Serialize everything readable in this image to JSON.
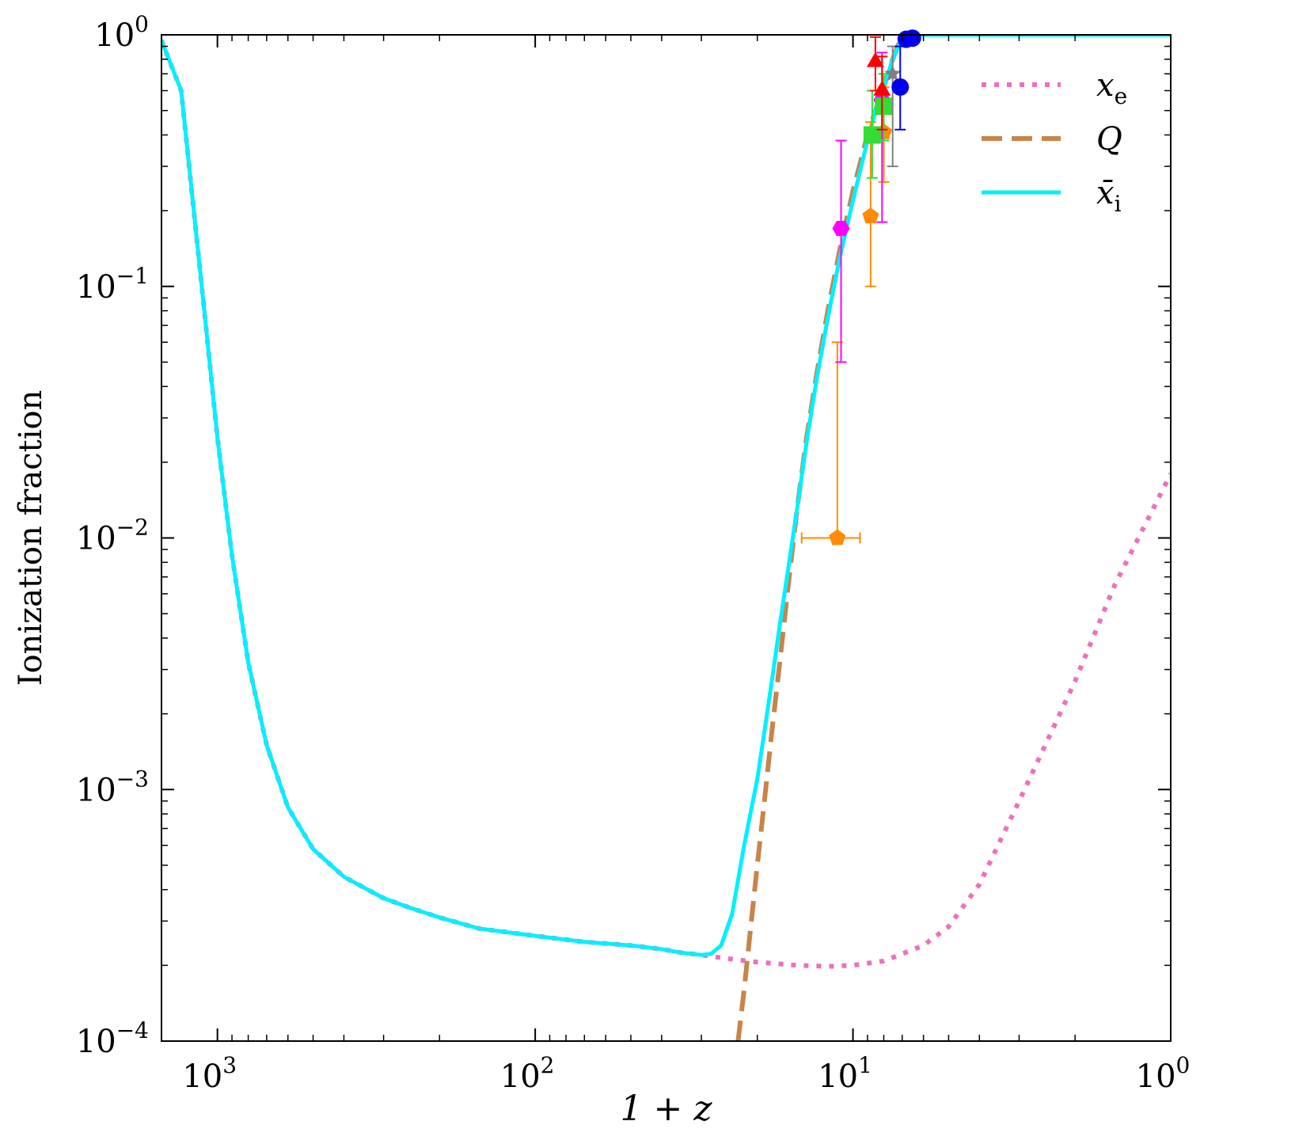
{
  "chart_data": {
    "type": "line",
    "title": "",
    "xlabel": "1 + z",
    "ylabel": "Ionization fraction",
    "x_scale": "log",
    "y_scale": "log",
    "x_reversed": true,
    "xlim": [
      1500,
      1
    ],
    "ylim": [
      0.0001,
      1
    ],
    "x_ticks": [
      {
        "value": 1000,
        "base": "10",
        "exp": "3"
      },
      {
        "value": 100,
        "base": "10",
        "exp": "2"
      },
      {
        "value": 10,
        "base": "10",
        "exp": "1"
      },
      {
        "value": 1,
        "base": "10",
        "exp": "0"
      }
    ],
    "y_ticks": [
      {
        "value": 1,
        "base": "10",
        "exp": "0"
      },
      {
        "value": 0.1,
        "base": "10",
        "exp": "−1"
      },
      {
        "value": 0.01,
        "base": "10",
        "exp": "−2"
      },
      {
        "value": 0.001,
        "base": "10",
        "exp": "−3"
      },
      {
        "value": 0.0001,
        "base": "10",
        "exp": "−4"
      }
    ],
    "grid": false,
    "legend_position": "top-right",
    "series": [
      {
        "name": "x",
        "subscript": "e",
        "color": "#ee6fbd",
        "style": "dotted",
        "x": [
          1500,
          1300,
          1100,
          1000,
          900,
          800,
          700,
          600,
          500,
          400,
          300,
          250,
          200,
          150,
          100,
          70,
          50,
          40,
          35,
          30,
          25,
          20,
          15,
          12,
          10,
          8,
          6,
          5,
          4,
          3,
          2,
          1.5,
          1
        ],
        "y": [
          0.95,
          0.6,
          0.08,
          0.025,
          0.0085,
          0.0032,
          0.0015,
          0.00085,
          0.00058,
          0.00045,
          0.00037,
          0.00034,
          0.00031,
          0.00028,
          0.000262,
          0.000248,
          0.00024,
          0.000232,
          0.000225,
          0.00022,
          0.000213,
          0.000206,
          0.0002,
          0.000198,
          0.0002,
          0.000208,
          0.00024,
          0.000285,
          0.00042,
          0.0009,
          0.0027,
          0.0065,
          0.018
        ]
      },
      {
        "name": "Q",
        "subscript": "",
        "color": "#c8844a",
        "style": "dashed",
        "x": [
          23,
          22,
          21,
          20,
          19,
          18,
          17,
          16,
          15,
          14,
          13,
          12,
          11,
          10,
          9,
          8.5,
          8,
          7.5,
          7
        ],
        "y": [
          0.0001,
          0.00016,
          0.00028,
          0.0005,
          0.0009,
          0.0017,
          0.0032,
          0.0064,
          0.013,
          0.025,
          0.045,
          0.08,
          0.14,
          0.24,
          0.4,
          0.5,
          0.62,
          0.8,
          1
        ]
      },
      {
        "name": "x̄",
        "subscript": "i",
        "color": "#00f0ff",
        "style": "solid",
        "x": [
          1500,
          1300,
          1100,
          1000,
          900,
          800,
          700,
          600,
          500,
          400,
          300,
          250,
          200,
          150,
          100,
          70,
          50,
          40,
          35,
          30,
          28,
          26,
          24,
          22,
          20,
          19,
          18,
          17,
          16,
          15,
          14,
          13,
          12,
          11,
          10,
          9,
          8.5,
          8,
          7.5,
          7,
          6.5,
          6,
          5,
          4,
          3,
          2,
          1
        ],
        "y": [
          0.95,
          0.6,
          0.08,
          0.025,
          0.0085,
          0.0032,
          0.0015,
          0.00085,
          0.00058,
          0.00045,
          0.00037,
          0.00034,
          0.00031,
          0.00028,
          0.000262,
          0.000248,
          0.00024,
          0.000232,
          0.000225,
          0.00022,
          0.000222,
          0.00024,
          0.00032,
          0.0006,
          0.0011,
          0.0017,
          0.0027,
          0.0045,
          0.0075,
          0.013,
          0.024,
          0.043,
          0.075,
          0.13,
          0.22,
          0.38,
          0.5,
          0.62,
          0.8,
          0.97,
          1,
          1,
          1,
          1,
          1,
          1,
          1
        ]
      }
    ],
    "observations": [
      {
        "marker": "pentagon",
        "color": "#ff8c00",
        "x": 11.2,
        "y": 0.01,
        "x_err": [
          14.5,
          9.5
        ],
        "y_err": [
          0.00995,
          0.06
        ]
      },
      {
        "marker": "pentagon",
        "color": "#ff8c00",
        "x": 8.8,
        "y": 0.19,
        "x_err": [
          null,
          null
        ],
        "y_err": [
          0.1,
          0.45
        ]
      },
      {
        "marker": "pentagon",
        "color": "#ff8c00",
        "x": 8.0,
        "y": 0.41,
        "x_err": [
          null,
          null
        ],
        "y_err": [
          0.26,
          0.62
        ]
      },
      {
        "marker": "hexagon",
        "color": "#ff00ff",
        "x": 10.9,
        "y": 0.17,
        "x_err": [
          null,
          null
        ],
        "y_err": [
          0.05,
          0.38
        ]
      },
      {
        "marker": "hexagon",
        "color": "#ff00ff",
        "x": 8.1,
        "y": 0.55,
        "x_err": [
          null,
          null
        ],
        "y_err": [
          0.18,
          0.85
        ]
      },
      {
        "marker": "square",
        "color": "#33dd33",
        "x": 8.7,
        "y": 0.4,
        "x_err": [
          null,
          null
        ],
        "y_err": [
          0.27,
          0.6
        ]
      },
      {
        "marker": "square",
        "color": "#33dd33",
        "x": 8.0,
        "y": 0.52,
        "x_err": [
          null,
          null
        ],
        "y_err": [
          0.38,
          0.7
        ]
      },
      {
        "marker": "triangle",
        "color": "#ff0000",
        "x": 8.5,
        "y": 0.78,
        "x_err": [
          null,
          null
        ],
        "y_err": [
          0.6,
          0.98
        ]
      },
      {
        "marker": "triangle",
        "color": "#ff0000",
        "x": 8.1,
        "y": 0.6,
        "x_err": [
          null,
          null
        ],
        "y_err": [
          0.42,
          0.82
        ]
      },
      {
        "marker": "star",
        "color": "#808080",
        "x": 7.5,
        "y": 0.7,
        "x_err": [
          null,
          null
        ],
        "y_err": [
          0.3,
          0.9
        ]
      },
      {
        "marker": "circle",
        "color": "#0000ee",
        "x": 7.1,
        "y": 0.62,
        "x_err": [
          null,
          null
        ],
        "y_err": [
          0.42,
          0.9
        ]
      },
      {
        "marker": "circle",
        "color": "#0000ee",
        "x": 6.8,
        "y": 0.96,
        "x_err": [
          null,
          null
        ],
        "y_err": [
          null,
          null
        ]
      },
      {
        "marker": "circle",
        "color": "#0000ee",
        "x": 6.5,
        "y": 0.97,
        "x_err": [
          null,
          null
        ],
        "y_err": [
          null,
          null
        ]
      }
    ]
  }
}
